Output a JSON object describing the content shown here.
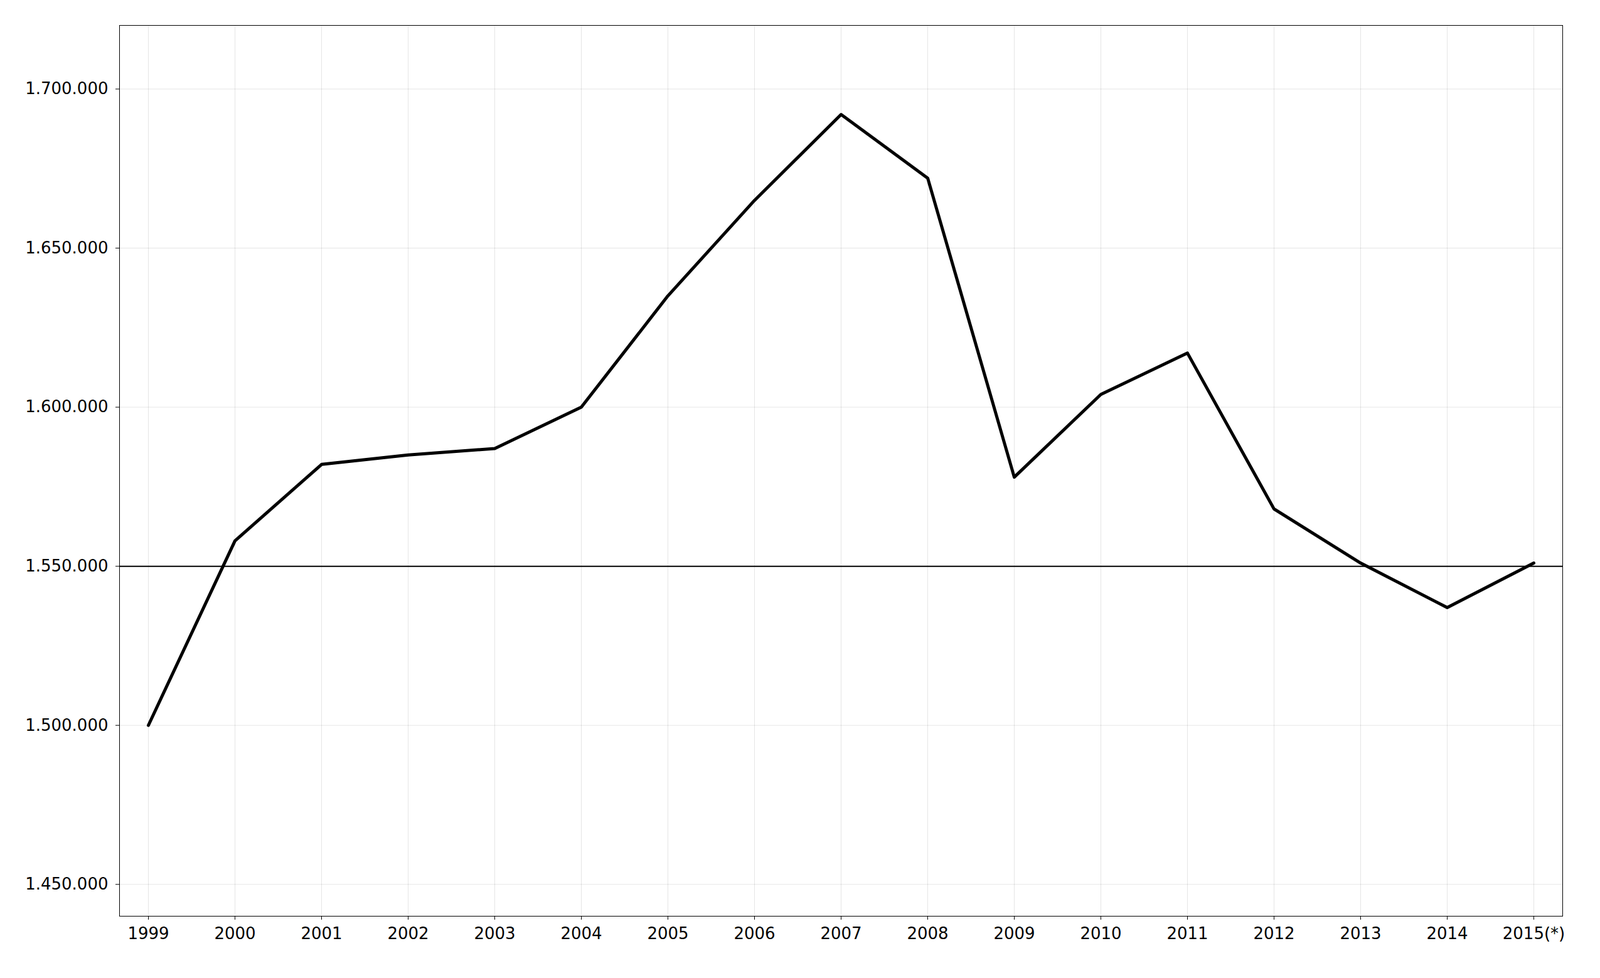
{
  "chart_data": {
    "type": "line",
    "categories": [
      "1999",
      "2000",
      "2001",
      "2002",
      "2003",
      "2004",
      "2005",
      "2006",
      "2007",
      "2008",
      "2009",
      "2010",
      "2011",
      "2012",
      "2013",
      "2014",
      "2015(*)"
    ],
    "values": [
      1500000,
      1558000,
      1582000,
      1585000,
      1587000,
      1600000,
      1635000,
      1665000,
      1692000,
      1672000,
      1578000,
      1604000,
      1617000,
      1568000,
      1551000,
      1537000,
      1551000
    ],
    "ylim": [
      1440000,
      1720000
    ],
    "yticks": [
      {
        "value": 1450000,
        "label": "1.450.000"
      },
      {
        "value": 1500000,
        "label": "1.500.000"
      },
      {
        "value": 1550000,
        "label": "1.550.000"
      },
      {
        "value": 1600000,
        "label": "1.600.000"
      },
      {
        "value": 1650000,
        "label": "1.650.000"
      },
      {
        "value": 1700000,
        "label": "1.700.000"
      }
    ],
    "hline": 1550000,
    "grid": true
  }
}
